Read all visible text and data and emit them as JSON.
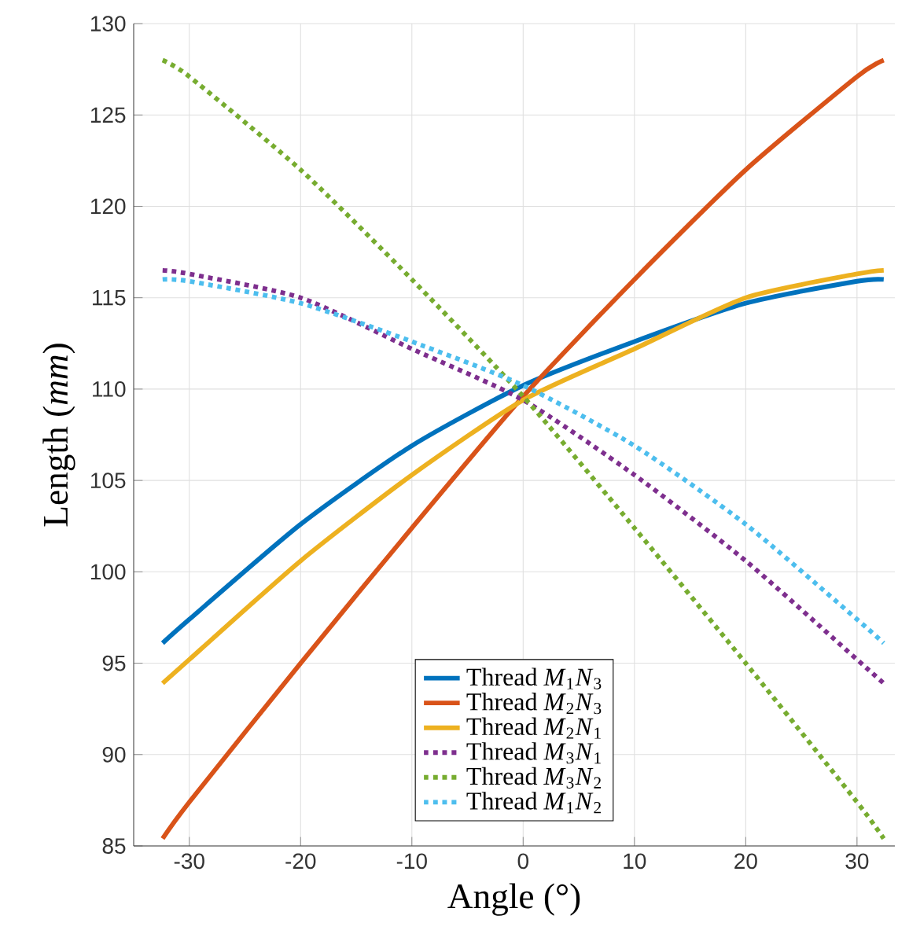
{
  "chart_data": {
    "type": "line",
    "xlabel": "Angle (°)",
    "ylabel": "Length (*mm*)",
    "xlim": [
      -35,
      33.4
    ],
    "ylim": [
      85,
      130
    ],
    "xticks": [
      -30,
      -20,
      -10,
      0,
      10,
      20,
      30
    ],
    "yticks": [
      85,
      90,
      95,
      100,
      105,
      110,
      115,
      120,
      125,
      130
    ],
    "grid": true,
    "legend": "bottom",
    "marker": "none",
    "x": [
      -32.4,
      -30,
      -20,
      -10,
      0,
      10,
      20,
      30,
      32.4
    ],
    "series": [
      {
        "name": "Thread *M*$_{1}$*N*$_{3}$",
        "color": "#0072bd",
        "line_style": "solid",
        "values": [
          96.1,
          97.4,
          102.6,
          106.9,
          110.2,
          112.6,
          114.7,
          115.9,
          116.0
        ]
      },
      {
        "name": "Thread *M*$_{2}$*N*$_{3}$",
        "color": "#d95319",
        "line_style": "solid",
        "values": [
          85.4,
          87.4,
          95.0,
          102.4,
          109.6,
          116.0,
          122.0,
          127.1,
          128.0
        ]
      },
      {
        "name": "Thread *M*$_{2}$*N*$_{1}$",
        "color": "#edb120",
        "line_style": "solid",
        "values": [
          93.9,
          95.2,
          100.6,
          105.3,
          109.4,
          112.2,
          115.0,
          116.3,
          116.5
        ]
      },
      {
        "name": "Thread *M*$_{3}$*N*$_{1}$",
        "color": "#7e2f8e",
        "line_style": "dotted",
        "values": [
          116.5,
          116.3,
          115.0,
          112.2,
          109.4,
          105.3,
          100.6,
          95.2,
          93.9
        ]
      },
      {
        "name": "Thread *M*$_{3}$*N*$_{2}$",
        "color": "#77ac30",
        "line_style": "dotted",
        "values": [
          128.0,
          127.1,
          122.0,
          116.0,
          109.6,
          102.4,
          95.0,
          87.4,
          85.4
        ]
      },
      {
        "name": "Thread *M*$_{1}$*N*$_{2}$",
        "color": "#4dbeee",
        "line_style": "dotted",
        "values": [
          116.0,
          115.9,
          114.7,
          112.6,
          110.2,
          106.9,
          102.6,
          97.4,
          96.1
        ]
      }
    ]
  }
}
